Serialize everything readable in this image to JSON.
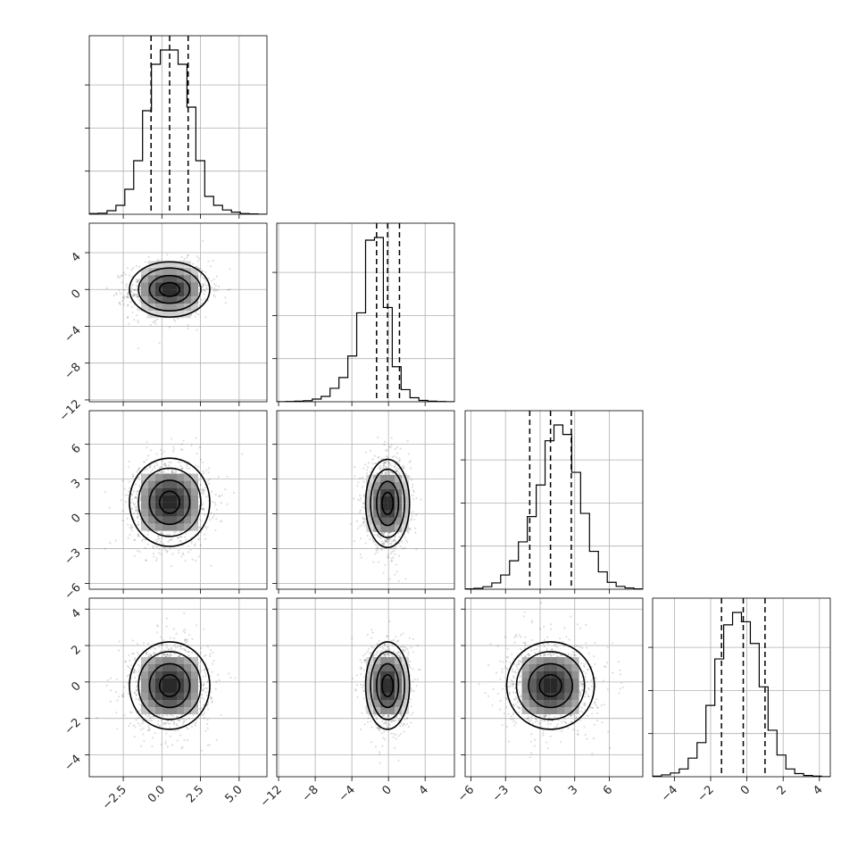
{
  "chart_data": {
    "type": "corner",
    "title": "",
    "grid": true,
    "parameters": [
      {
        "label": "",
        "range": [
          -4.7,
          6.8
        ],
        "median": 0.5,
        "q16": -0.7,
        "q84": 1.7,
        "ticks": [
          -2.5,
          0.0,
          2.5,
          5.0
        ],
        "tick_labels": [
          "−2.5",
          "0.0",
          "2.5",
          "5.0"
        ],
        "hist_counts": [
          2,
          3,
          10,
          25,
          70,
          150,
          290,
          420,
          460,
          460,
          420,
          300,
          150,
          50,
          25,
          12,
          6,
          2,
          1,
          0
        ]
      },
      {
        "label": "",
        "range": [
          -12.2,
          7.2
        ],
        "median": -0.1,
        "q16": -1.3,
        "q84": 1.2,
        "ticks": [
          -12,
          -8,
          -4,
          0,
          4
        ],
        "tick_labels": [
          "−12",
          "−8",
          "−4",
          "0",
          "4"
        ],
        "hist_counts": [
          0,
          1,
          2,
          4,
          10,
          20,
          50,
          90,
          170,
          330,
          600,
          610,
          350,
          130,
          45,
          15,
          5,
          2,
          1,
          0
        ]
      },
      {
        "label": "",
        "range": [
          -6.5,
          8.9
        ],
        "median": 0.9,
        "q16": -0.9,
        "q84": 2.7,
        "ticks": [
          -6,
          -3,
          0,
          3,
          6
        ],
        "tick_labels": [
          "−6",
          "−3",
          "0",
          "3",
          "6"
        ],
        "hist_counts": [
          1,
          3,
          8,
          20,
          45,
          90,
          150,
          230,
          330,
          470,
          520,
          490,
          370,
          240,
          120,
          55,
          22,
          9,
          4,
          1
        ]
      },
      {
        "label": "",
        "range": [
          -5.2,
          4.6
        ],
        "median": -0.2,
        "q16": -1.4,
        "q84": 1.0,
        "ticks": [
          -4,
          -2,
          0,
          2,
          4
        ],
        "tick_labels": [
          "−4",
          "−2",
          "0",
          "2",
          "4"
        ],
        "hist_counts": [
          2,
          6,
          12,
          25,
          60,
          110,
          230,
          380,
          490,
          530,
          500,
          430,
          290,
          150,
          70,
          25,
          10,
          4,
          2,
          0
        ]
      }
    ],
    "side_ticks": [
      {
        "row": 0,
        "ticks": [],
        "tick_labels": []
      },
      {
        "row": 1,
        "ticks": [
          4,
          0,
          -4,
          -8,
          -12
        ],
        "tick_labels": [
          "4",
          "0",
          "−4",
          "−8",
          "−12"
        ]
      },
      {
        "row": 2,
        "ticks": [
          6,
          3,
          0,
          -3,
          -6
        ],
        "tick_labels": [
          "6",
          "3",
          "0",
          "−3",
          "−6"
        ]
      },
      {
        "row": 3,
        "ticks": [
          4,
          2,
          0,
          -2,
          -4
        ],
        "tick_labels": [
          "4",
          "2",
          "0",
          "−2",
          "−4"
        ]
      }
    ],
    "correlations": [
      {
        "row": 1,
        "col": 0,
        "mean": [
          0.5,
          0.0
        ],
        "sd": [
          1.3,
          1.5
        ],
        "rho": 0.05
      },
      {
        "row": 2,
        "col": 0,
        "mean": [
          0.5,
          1.0
        ],
        "sd": [
          1.3,
          1.9
        ],
        "rho": 0.0
      },
      {
        "row": 2,
        "col": 1,
        "mean": [
          -0.1,
          0.9
        ],
        "sd": [
          1.2,
          1.9
        ],
        "rho": 0.0
      },
      {
        "row": 3,
        "col": 0,
        "mean": [
          0.5,
          -0.2
        ],
        "sd": [
          1.3,
          1.2
        ],
        "rho": 0.0
      },
      {
        "row": 3,
        "col": 1,
        "mean": [
          -0.1,
          -0.2
        ],
        "sd": [
          1.2,
          1.2
        ],
        "rho": 0.0
      },
      {
        "row": 3,
        "col": 2,
        "mean": [
          0.9,
          -0.2
        ],
        "sd": [
          1.9,
          1.2
        ],
        "rho": 0.0
      }
    ]
  }
}
